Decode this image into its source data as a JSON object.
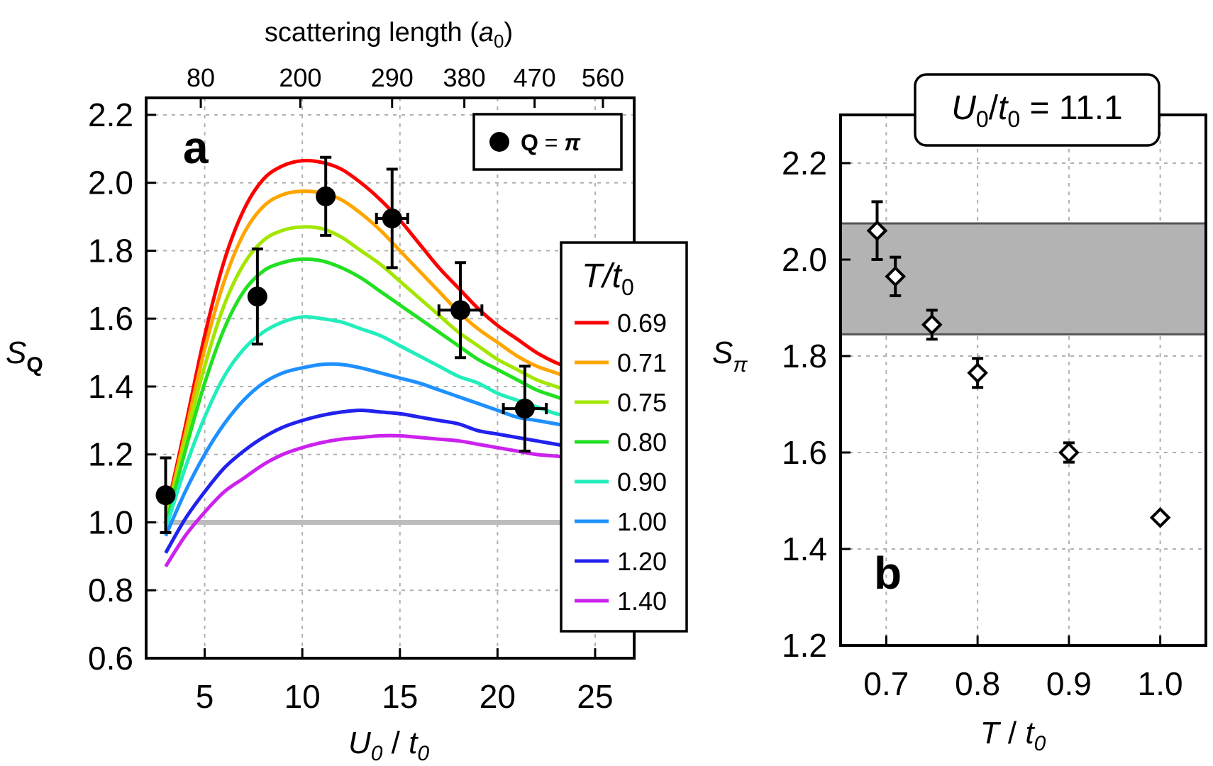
{
  "chart_data": [
    {
      "panel": "a",
      "type": "line",
      "xlabel": "U0/t0",
      "ylabel": "SQ",
      "top_xlabel": "scattering length (a0)",
      "xlim": [
        2,
        27
      ],
      "ylim": [
        0.6,
        2.25
      ],
      "x_ticks": [
        5,
        10,
        15,
        20,
        25
      ],
      "x_tick_labels": [
        "5",
        "10",
        "15",
        "20",
        "25"
      ],
      "y_ticks": [
        0.6,
        0.8,
        1.0,
        1.2,
        1.4,
        1.6,
        1.8,
        2.0,
        2.2
      ],
      "y_tick_labels": [
        "0.6",
        "0.8",
        "1.0",
        "1.2",
        "1.4",
        "1.6",
        "1.8",
        "2.0",
        "2.2"
      ],
      "top_ticks_x": [
        4.8,
        9.9,
        14.6,
        18.3,
        21.9,
        25.4
      ],
      "top_tick_labels": [
        "80",
        "200",
        "290",
        "380",
        "470",
        "560"
      ],
      "grid": true,
      "reference_line": {
        "y": 1.0,
        "color": "#bdbdbd"
      },
      "legend_title": "T/t0",
      "legend_title_italic_part": "T/t",
      "legend_title_sub": "0",
      "legend_placement": "right",
      "series": [
        {
          "name": "0.69",
          "color": "#ff0000",
          "x": [
            3,
            4,
            5,
            6,
            7,
            8,
            9,
            10,
            11,
            12,
            13,
            14,
            15,
            16,
            17,
            18,
            19,
            20,
            21,
            22,
            23,
            24
          ],
          "y": [
            1.02,
            1.28,
            1.55,
            1.77,
            1.92,
            2.01,
            2.05,
            2.065,
            2.06,
            2.04,
            2.0,
            1.95,
            1.89,
            1.82,
            1.75,
            1.69,
            1.63,
            1.58,
            1.54,
            1.5,
            1.47,
            1.45
          ]
        },
        {
          "name": "0.71",
          "color": "#ffa500",
          "x": [
            3,
            4,
            5,
            6,
            7,
            8,
            9,
            10,
            11,
            12,
            13,
            14,
            15,
            16,
            17,
            18,
            19,
            20,
            21,
            22,
            23,
            24
          ],
          "y": [
            1.01,
            1.26,
            1.51,
            1.71,
            1.85,
            1.93,
            1.965,
            1.975,
            1.97,
            1.95,
            1.91,
            1.86,
            1.8,
            1.74,
            1.68,
            1.62,
            1.57,
            1.53,
            1.49,
            1.46,
            1.44,
            1.42
          ]
        },
        {
          "name": "0.75",
          "color": "#a3e600",
          "x": [
            3,
            4,
            5,
            6,
            7,
            8,
            9,
            10,
            11,
            12,
            13,
            14,
            15,
            16,
            17,
            18,
            19,
            20,
            21,
            22,
            23,
            24
          ],
          "y": [
            1.0,
            1.24,
            1.46,
            1.64,
            1.76,
            1.83,
            1.86,
            1.87,
            1.865,
            1.84,
            1.8,
            1.76,
            1.71,
            1.66,
            1.61,
            1.56,
            1.52,
            1.48,
            1.45,
            1.42,
            1.4,
            1.38
          ]
        },
        {
          "name": "0.80",
          "color": "#22e022",
          "x": [
            3,
            4,
            5,
            6,
            7,
            8,
            9,
            10,
            11,
            12,
            13,
            14,
            15,
            16,
            17,
            18,
            19,
            20,
            21,
            22,
            23,
            24
          ],
          "y": [
            0.99,
            1.21,
            1.41,
            1.57,
            1.68,
            1.74,
            1.765,
            1.775,
            1.77,
            1.75,
            1.72,
            1.68,
            1.64,
            1.6,
            1.56,
            1.52,
            1.48,
            1.45,
            1.42,
            1.39,
            1.37,
            1.35
          ]
        },
        {
          "name": "0.90",
          "color": "#22eebb",
          "x": [
            3,
            4,
            5,
            6,
            7,
            8,
            9,
            10,
            11,
            12,
            13,
            14,
            15,
            16,
            17,
            18,
            19,
            20,
            21,
            22,
            23,
            24
          ],
          "y": [
            0.98,
            1.16,
            1.31,
            1.43,
            1.51,
            1.56,
            1.59,
            1.605,
            1.6,
            1.59,
            1.57,
            1.55,
            1.52,
            1.49,
            1.46,
            1.43,
            1.41,
            1.38,
            1.36,
            1.34,
            1.32,
            1.31
          ]
        },
        {
          "name": "1.00",
          "color": "#1e90ff",
          "x": [
            3,
            4,
            5,
            6,
            7,
            8,
            9,
            10,
            11,
            12,
            13,
            14,
            15,
            16,
            17,
            18,
            19,
            20,
            21,
            22,
            23,
            24
          ],
          "y": [
            0.96,
            1.09,
            1.2,
            1.29,
            1.36,
            1.41,
            1.44,
            1.455,
            1.465,
            1.465,
            1.455,
            1.44,
            1.425,
            1.41,
            1.39,
            1.37,
            1.35,
            1.33,
            1.31,
            1.3,
            1.29,
            1.28
          ]
        },
        {
          "name": "1.20",
          "color": "#2222ee",
          "x": [
            3,
            4,
            5,
            6,
            7,
            8,
            9,
            10,
            11,
            12,
            13,
            14,
            15,
            16,
            17,
            18,
            19,
            20,
            21,
            22,
            23,
            24
          ],
          "y": [
            0.91,
            1.01,
            1.09,
            1.16,
            1.21,
            1.25,
            1.28,
            1.3,
            1.315,
            1.325,
            1.33,
            1.325,
            1.32,
            1.31,
            1.3,
            1.29,
            1.27,
            1.26,
            1.25,
            1.24,
            1.23,
            1.22
          ]
        },
        {
          "name": "1.40",
          "color": "#cc22ee",
          "x": [
            3,
            4,
            5,
            6,
            7,
            8,
            9,
            10,
            11,
            12,
            13,
            14,
            15,
            16,
            17,
            18,
            19,
            20,
            21,
            22,
            23,
            24
          ],
          "y": [
            0.87,
            0.96,
            1.03,
            1.09,
            1.13,
            1.17,
            1.2,
            1.22,
            1.235,
            1.245,
            1.25,
            1.255,
            1.255,
            1.25,
            1.245,
            1.24,
            1.23,
            1.22,
            1.21,
            1.2,
            1.195,
            1.19
          ]
        }
      ],
      "data_points": {
        "legend_label": "Q = π",
        "marker": "filled-circle",
        "x": [
          3.0,
          7.7,
          11.2,
          14.6,
          18.1,
          21.4
        ],
        "y": [
          1.08,
          1.665,
          1.96,
          1.895,
          1.625,
          1.335
        ],
        "xerr": [
          0,
          0,
          0,
          0.8,
          1.1,
          1.1
        ],
        "yerr": [
          0.11,
          0.14,
          0.115,
          0.145,
          0.14,
          0.125
        ]
      }
    },
    {
      "panel": "b",
      "type": "scatter",
      "xlabel": "T/t0",
      "ylabel": "Sπ",
      "xlim": [
        0.65,
        1.05
      ],
      "ylim": [
        1.2,
        2.3
      ],
      "x_ticks": [
        0.7,
        0.8,
        0.9,
        1.0
      ],
      "x_tick_labels": [
        "0.7",
        "0.8",
        "0.9",
        "1.0"
      ],
      "y_ticks": [
        1.2,
        1.4,
        1.6,
        1.8,
        2.0,
        2.2
      ],
      "y_tick_labels": [
        "1.2",
        "1.4",
        "1.6",
        "1.8",
        "2.0",
        "2.2"
      ],
      "grid": true,
      "annotation": "U0/t0 = 11.1",
      "shaded_band": {
        "ymin": 1.845,
        "ymax": 2.075,
        "color": "#b3b3b3"
      },
      "series": [
        {
          "marker": "open-diamond",
          "x": [
            0.69,
            0.71,
            0.75,
            0.8,
            0.9,
            1.0
          ],
          "y": [
            2.06,
            1.965,
            1.865,
            1.765,
            1.6,
            1.465
          ],
          "yerr": [
            0.06,
            0.04,
            0.03,
            0.03,
            0.02,
            0.01
          ]
        }
      ]
    }
  ]
}
